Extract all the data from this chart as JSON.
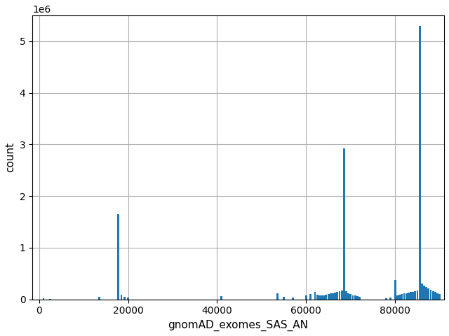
{
  "xlabel": "gnomAD_exomes_SAS_AN",
  "ylabel": "count",
  "bar_color": "#1f77b4",
  "xlim": [
    -1500,
    91000
  ],
  "ylim": [
    0,
    5500000
  ],
  "grid": true,
  "bar_data": [
    [
      1000,
      25000
    ],
    [
      2500,
      5000
    ],
    [
      13500,
      50000
    ],
    [
      17800,
      1650000
    ],
    [
      18500,
      85000
    ],
    [
      19200,
      50000
    ],
    [
      20000,
      30000
    ],
    [
      41000,
      60000
    ],
    [
      53500,
      120000
    ],
    [
      55000,
      50000
    ],
    [
      57000,
      30000
    ],
    [
      60000,
      80000
    ],
    [
      61000,
      100000
    ],
    [
      62000,
      140000
    ],
    [
      62500,
      90000
    ],
    [
      63000,
      80000
    ],
    [
      63500,
      70000
    ],
    [
      64000,
      80000
    ],
    [
      64500,
      90000
    ],
    [
      65000,
      100000
    ],
    [
      65500,
      110000
    ],
    [
      66000,
      120000
    ],
    [
      66500,
      130000
    ],
    [
      67000,
      150000
    ],
    [
      67500,
      160000
    ],
    [
      68000,
      170000
    ],
    [
      68500,
      2920000
    ],
    [
      69000,
      160000
    ],
    [
      69500,
      120000
    ],
    [
      70000,
      100000
    ],
    [
      70500,
      80000
    ],
    [
      71000,
      70000
    ],
    [
      71500,
      60000
    ],
    [
      72000,
      50000
    ],
    [
      78000,
      20000
    ],
    [
      79000,
      30000
    ],
    [
      80000,
      380000
    ],
    [
      80500,
      80000
    ],
    [
      81000,
      90000
    ],
    [
      81500,
      100000
    ],
    [
      82000,
      110000
    ],
    [
      82500,
      120000
    ],
    [
      83000,
      130000
    ],
    [
      83500,
      140000
    ],
    [
      84000,
      150000
    ],
    [
      84500,
      160000
    ],
    [
      85000,
      170000
    ],
    [
      85500,
      5300000
    ],
    [
      86000,
      310000
    ],
    [
      86500,
      270000
    ],
    [
      87000,
      240000
    ],
    [
      87500,
      210000
    ],
    [
      88000,
      180000
    ],
    [
      88500,
      160000
    ],
    [
      89000,
      140000
    ],
    [
      89500,
      120000
    ],
    [
      90000,
      100000
    ]
  ],
  "bin_width": 450,
  "xticks": [
    0,
    20000,
    40000,
    60000,
    80000
  ],
  "yticks": [
    0,
    1000000,
    2000000,
    3000000,
    4000000,
    5000000
  ],
  "figsize": [
    6.4,
    4.8
  ],
  "dpi": 100
}
